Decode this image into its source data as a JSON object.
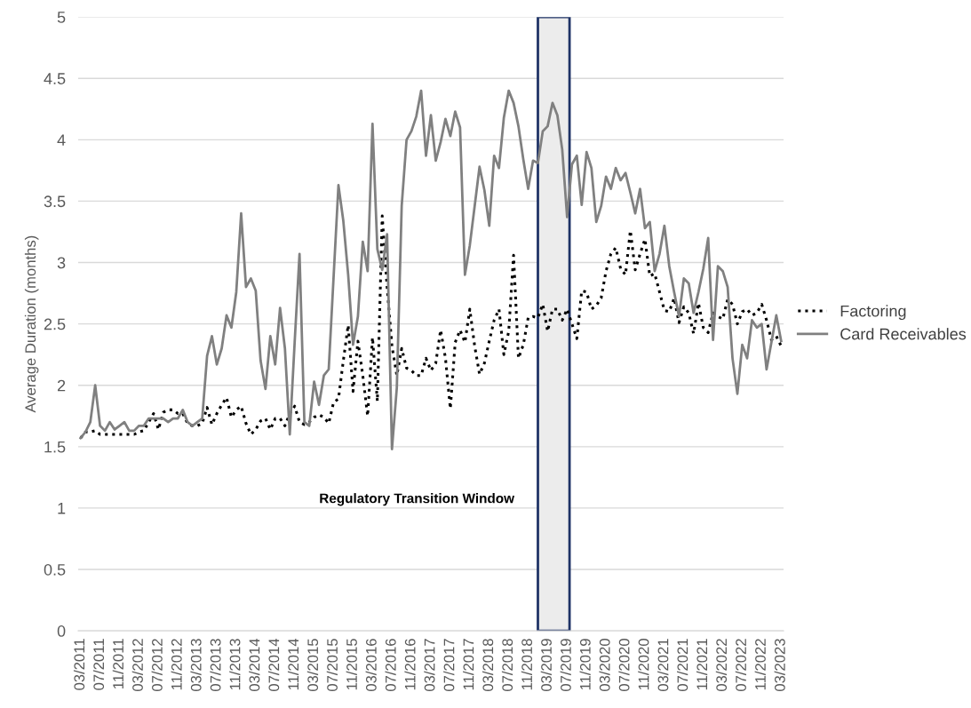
{
  "chart_data": {
    "type": "line",
    "ylabel": "Average Duration (months)",
    "categories": [
      "03/2011",
      null,
      null,
      null,
      "07/2011",
      null,
      null,
      null,
      "11/2011",
      null,
      null,
      null,
      "03/2012",
      null,
      null,
      null,
      "07/2012",
      null,
      null,
      null,
      "11/2012",
      null,
      null,
      null,
      "03/2013",
      null,
      null,
      null,
      "07/2013",
      null,
      null,
      null,
      "11/2013",
      null,
      null,
      null,
      "03/2014",
      null,
      null,
      null,
      "07/2014",
      null,
      null,
      null,
      "11/2014",
      null,
      null,
      null,
      "03/2015",
      null,
      null,
      null,
      "07/2015",
      null,
      null,
      null,
      "11/2015",
      null,
      null,
      null,
      "03/2016",
      null,
      null,
      null,
      "07/2016",
      null,
      null,
      null,
      "11/2016",
      null,
      null,
      null,
      "03/2017",
      null,
      null,
      null,
      "07/2017",
      null,
      null,
      null,
      "11/2017",
      null,
      null,
      null,
      "03/2018",
      null,
      null,
      null,
      "07/2018",
      null,
      null,
      null,
      "11/2018",
      null,
      null,
      null,
      "03/2019",
      null,
      null,
      null,
      "07/2019",
      null,
      null,
      null,
      "11/2019",
      null,
      null,
      null,
      "03/2020",
      null,
      null,
      null,
      "07/2020",
      null,
      null,
      null,
      "11/2020",
      null,
      null,
      null,
      "03/2021",
      null,
      null,
      null,
      "07/2021",
      null,
      null,
      null,
      "11/2021",
      null,
      null,
      null,
      "03/2022",
      null,
      null,
      null,
      "07/2022",
      null,
      null,
      null,
      "11/2022",
      null,
      null,
      null,
      "03/2023"
    ],
    "series": [
      {
        "name": "Factoring",
        "color": "#000000",
        "line_style": "dotted",
        "values": [
          1.57,
          1.62,
          1.62,
          1.63,
          1.6,
          1.6,
          1.6,
          1.6,
          1.6,
          1.6,
          1.6,
          1.6,
          1.62,
          1.63,
          1.7,
          1.77,
          1.64,
          1.78,
          1.8,
          1.8,
          1.77,
          1.77,
          1.69,
          1.67,
          1.67,
          1.69,
          1.82,
          1.68,
          1.77,
          1.84,
          1.9,
          1.74,
          1.8,
          1.83,
          1.69,
          1.6,
          1.64,
          1.71,
          1.73,
          1.64,
          1.73,
          1.73,
          1.67,
          1.77,
          1.83,
          1.7,
          1.68,
          1.7,
          1.74,
          1.76,
          1.74,
          1.69,
          1.86,
          1.89,
          2.2,
          2.49,
          1.95,
          2.36,
          2.08,
          1.75,
          2.39,
          1.87,
          3.38,
          2.8,
          2.32,
          2.08,
          2.3,
          2.14,
          2.12,
          2.08,
          2.08,
          2.22,
          2.12,
          2.18,
          2.45,
          2.22,
          1.81,
          2.35,
          2.45,
          2.35,
          2.62,
          2.32,
          2.09,
          2.18,
          2.36,
          2.53,
          2.62,
          2.25,
          2.44,
          3.06,
          2.22,
          2.33,
          2.55,
          2.56,
          2.55,
          2.66,
          2.44,
          2.62,
          2.62,
          2.53,
          2.62,
          2.5,
          2.38,
          2.77,
          2.76,
          2.62,
          2.65,
          2.71,
          2.93,
          3.07,
          3.12,
          2.95,
          2.9,
          3.26,
          2.94,
          3.07,
          3.19,
          2.89,
          2.91,
          2.76,
          2.61,
          2.6,
          2.71,
          2.51,
          2.64,
          2.59,
          2.42,
          2.67,
          2.47,
          2.43,
          2.59,
          2.56,
          2.54,
          2.7,
          2.66,
          2.5,
          2.6,
          2.62,
          2.57,
          2.59,
          2.66,
          2.53,
          2.37,
          2.4,
          2.32
        ]
      },
      {
        "name": "Card Receivables",
        "color": "#808080",
        "line_style": "solid",
        "values": [
          1.57,
          1.62,
          1.7,
          2.0,
          1.67,
          1.63,
          1.7,
          1.64,
          1.67,
          1.7,
          1.63,
          1.63,
          1.67,
          1.67,
          1.73,
          1.73,
          1.73,
          1.73,
          1.7,
          1.73,
          1.73,
          1.8,
          1.7,
          1.67,
          1.7,
          1.73,
          2.24,
          2.4,
          2.17,
          2.3,
          2.57,
          2.47,
          2.76,
          3.4,
          2.8,
          2.87,
          2.77,
          2.2,
          1.97,
          2.4,
          2.17,
          2.63,
          2.3,
          1.6,
          2.35,
          3.07,
          1.7,
          1.67,
          2.03,
          1.84,
          2.08,
          2.13,
          2.88,
          3.63,
          3.34,
          2.9,
          2.33,
          2.56,
          3.17,
          2.93,
          4.13,
          3.11,
          2.94,
          3.23,
          1.48,
          1.98,
          3.46,
          4.0,
          4.07,
          4.19,
          4.4,
          3.87,
          4.2,
          3.83,
          3.98,
          4.17,
          4.03,
          4.23,
          4.1,
          2.9,
          3.14,
          3.46,
          3.78,
          3.59,
          3.3,
          3.87,
          3.77,
          4.18,
          4.4,
          4.3,
          4.11,
          3.84,
          3.6,
          3.83,
          3.81,
          4.07,
          4.11,
          4.3,
          4.2,
          3.92,
          3.37,
          3.8,
          3.87,
          3.47,
          3.9,
          3.77,
          3.33,
          3.46,
          3.7,
          3.6,
          3.77,
          3.67,
          3.73,
          3.57,
          3.4,
          3.6,
          3.28,
          3.33,
          2.93,
          3.07,
          3.3,
          2.97,
          2.76,
          2.56,
          2.87,
          2.83,
          2.59,
          2.76,
          2.95,
          3.2,
          2.37,
          2.97,
          2.93,
          2.8,
          2.22,
          1.93,
          2.33,
          2.22,
          2.53,
          2.47,
          2.5,
          2.13,
          2.35,
          2.57,
          2.36
        ]
      }
    ],
    "ylim": [
      0,
      5
    ],
    "yticks": [
      0,
      0.5,
      1,
      1.5,
      2,
      2.5,
      3,
      3.5,
      4,
      4.5,
      5
    ],
    "annotations": [
      "Regulatory Transition Window"
    ],
    "grid": "y",
    "legend": "right",
    "marker": "none"
  }
}
